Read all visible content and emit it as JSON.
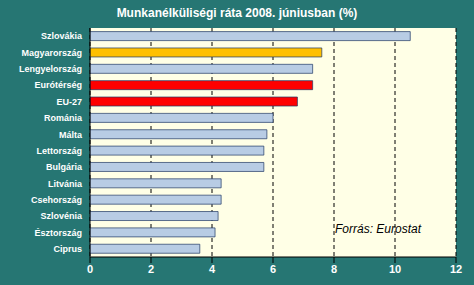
{
  "chart_data": {
    "type": "bar",
    "title": "Munkanélküliségi ráta 2008. júniusban (%)",
    "orientation": "horizontal",
    "categories": [
      "Szlovákia",
      "Magyarország",
      "Lengyelország",
      "Eurótérség",
      "EU-27",
      "Románia",
      "Málta",
      "Lettország",
      "Bulgária",
      "Litvánia",
      "Csehország",
      "Szlovénia",
      "Észtország",
      "Ciprus"
    ],
    "values": [
      10.5,
      7.6,
      7.3,
      7.3,
      6.8,
      6.0,
      5.8,
      5.7,
      5.7,
      4.3,
      4.3,
      4.2,
      4.1,
      3.6
    ],
    "colors": [
      "#b8cce4",
      "#ffc000",
      "#b8cce4",
      "#ff0000",
      "#ff0000",
      "#b8cce4",
      "#b8cce4",
      "#b8cce4",
      "#b8cce4",
      "#b8cce4",
      "#b8cce4",
      "#b8cce4",
      "#b8cce4",
      "#b8cce4"
    ],
    "xlim": [
      0,
      12
    ],
    "xticks": [
      0,
      2,
      4,
      6,
      8,
      10,
      12
    ],
    "grid": true,
    "annotation": "Forrás: Eurostat"
  }
}
